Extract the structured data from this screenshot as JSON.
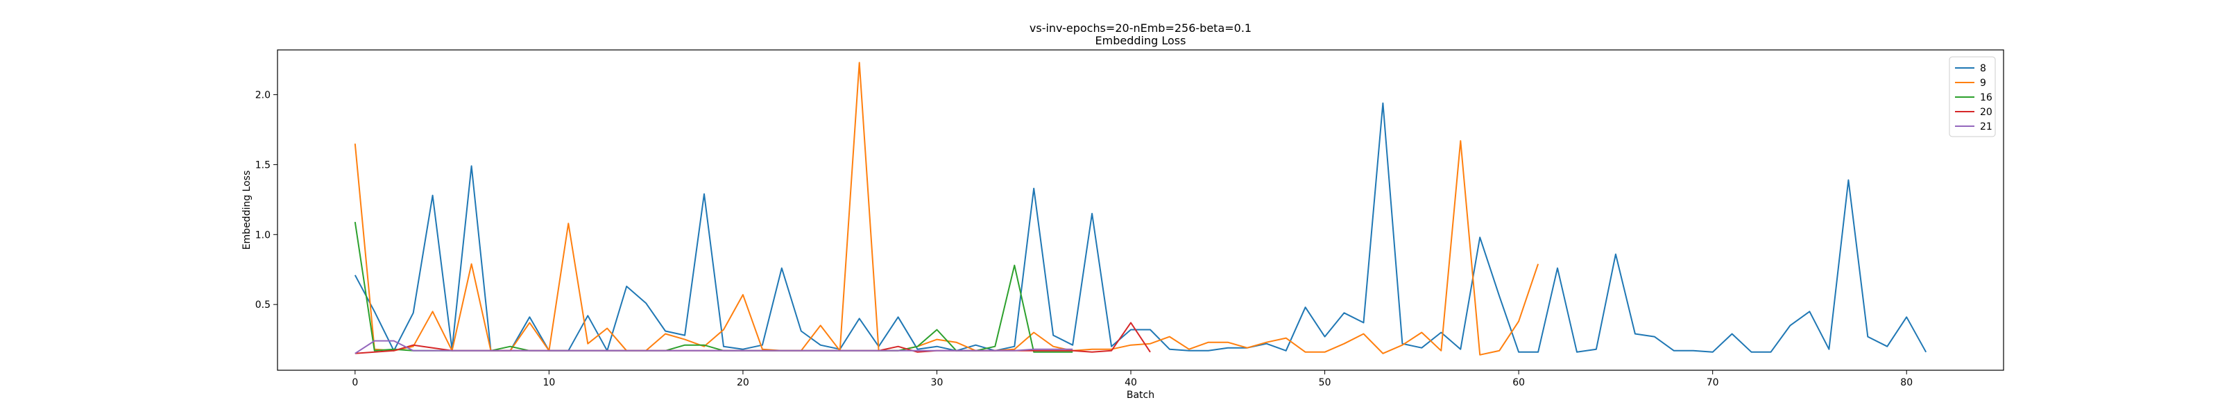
{
  "chart_data": {
    "type": "line",
    "title": "vs-inv-epochs=20-nEmb=256-beta=0.1",
    "subtitle": "Embedding Loss",
    "xlabel": "Batch",
    "ylabel": "Embedding Loss",
    "xlim": [
      -4,
      85
    ],
    "ylim": [
      0.03,
      2.32
    ],
    "xticks": [
      0,
      10,
      20,
      30,
      40,
      50,
      60,
      70,
      80
    ],
    "yticks": [
      0.5,
      1.0,
      1.5,
      2.0
    ],
    "ytick_labels": [
      "0.5",
      "1.0",
      "1.5",
      "2.0"
    ],
    "grid": false,
    "legend_position": "top-right",
    "series": [
      {
        "name": "8",
        "color": "#1f77b4",
        "values": [
          0.71,
          0.45,
          0.17,
          0.44,
          1.28,
          0.18,
          1.49,
          0.17,
          0.17,
          0.41,
          0.17,
          0.17,
          0.42,
          0.17,
          0.63,
          0.51,
          0.31,
          0.28,
          1.29,
          0.2,
          0.18,
          0.21,
          0.76,
          0.31,
          0.21,
          0.18,
          0.4,
          0.2,
          0.41,
          0.18,
          0.2,
          0.17,
          0.21,
          0.17,
          0.2,
          1.33,
          0.28,
          0.21,
          1.15,
          0.2,
          0.32,
          0.32,
          0.18,
          0.17,
          0.17,
          0.19,
          0.19,
          0.22,
          0.17,
          0.48,
          0.27,
          0.44,
          0.37,
          1.94,
          0.22,
          0.19,
          0.3,
          0.18,
          0.98,
          0.56,
          0.16,
          0.16,
          0.76,
          0.16,
          0.18,
          0.86,
          0.29,
          0.27,
          0.17,
          0.17,
          0.16,
          0.29,
          0.16,
          0.16,
          0.35,
          0.45,
          0.18,
          1.39,
          0.27,
          0.2,
          0.41,
          0.16
        ]
      },
      {
        "name": "9",
        "color": "#ff7f0e",
        "values": [
          1.65,
          0.18,
          0.17,
          0.2,
          0.45,
          0.17,
          0.79,
          0.17,
          0.17,
          0.37,
          0.17,
          1.08,
          0.22,
          0.33,
          0.17,
          0.17,
          0.29,
          0.25,
          0.2,
          0.32,
          0.57,
          0.18,
          0.17,
          0.17,
          0.35,
          0.17,
          2.23,
          0.17,
          0.17,
          0.2,
          0.25,
          0.23,
          0.17,
          0.17,
          0.18,
          0.3,
          0.2,
          0.17,
          0.18,
          0.18,
          0.21,
          0.22,
          0.27,
          0.18,
          0.23,
          0.23,
          0.19,
          0.23,
          0.26,
          0.16,
          0.16,
          0.22,
          0.29,
          0.15,
          0.21,
          0.3,
          0.17,
          1.67,
          0.14,
          0.17,
          0.38,
          0.79
        ]
      },
      {
        "name": "16",
        "color": "#2ca02c",
        "values": [
          1.09,
          0.17,
          0.18,
          0.17,
          0.17,
          0.17,
          0.17,
          0.17,
          0.2,
          0.17,
          0.17,
          0.17,
          0.17,
          0.17,
          0.17,
          0.17,
          0.17,
          0.21,
          0.21,
          0.17,
          0.17,
          0.17,
          0.17,
          0.17,
          0.17,
          0.17,
          0.17,
          0.17,
          0.17,
          0.2,
          0.32,
          0.17,
          0.17,
          0.2,
          0.78,
          0.16,
          0.16,
          0.16
        ]
      },
      {
        "name": "20",
        "color": "#d62728",
        "values": [
          0.15,
          0.16,
          0.17,
          0.21,
          0.19,
          0.17,
          0.17,
          0.17,
          0.17,
          0.17,
          0.17,
          0.17,
          0.17,
          0.17,
          0.17,
          0.17,
          0.17,
          0.17,
          0.17,
          0.17,
          0.17,
          0.17,
          0.17,
          0.17,
          0.17,
          0.17,
          0.17,
          0.17,
          0.2,
          0.16,
          0.17,
          0.17,
          0.17,
          0.17,
          0.17,
          0.17,
          0.17,
          0.17,
          0.16,
          0.17,
          0.37,
          0.16
        ]
      },
      {
        "name": "21",
        "color": "#9467bd",
        "values": [
          0.15,
          0.24,
          0.24,
          0.17,
          0.17,
          0.17,
          0.17,
          0.17,
          0.17,
          0.17,
          0.17,
          0.17,
          0.17,
          0.17,
          0.17,
          0.17,
          0.17,
          0.17,
          0.17,
          0.17,
          0.17,
          0.17,
          0.17,
          0.17,
          0.17,
          0.17,
          0.17,
          0.17,
          0.17,
          0.17,
          0.17,
          0.17,
          0.17,
          0.17,
          0.17,
          0.18,
          0.18,
          0.18
        ]
      }
    ]
  }
}
